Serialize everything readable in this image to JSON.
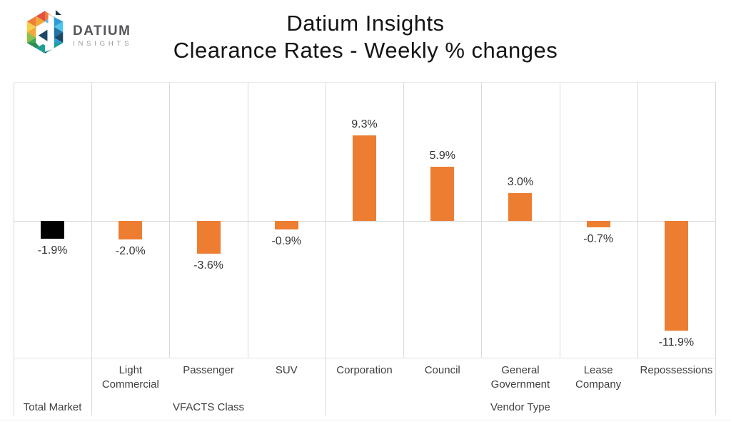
{
  "logo": {
    "brand": "DATIUM",
    "subtitle": "INSIGHTS",
    "icon": "datium-hexagon-mosaic",
    "icon_colors": [
      "#E65143",
      "#EF7D3C",
      "#F2A93B",
      "#F5D14B",
      "#8DC04B",
      "#3FA557",
      "#1FA097",
      "#4FC3E8",
      "#2E9BD6",
      "#2272A4",
      "#1B4965",
      "#163A53"
    ]
  },
  "header": {
    "title_line1": "Datium Insights",
    "title_line2": "Clearance Rates - Weekly % changes"
  },
  "colors": {
    "bar_orange": "#ED7D31",
    "bar_black": "#000000",
    "gridline": "#D9D9D9",
    "axis_line": "#E4E4E4",
    "label_text": "#3F3F3F",
    "title_text": "#141414"
  },
  "chart_data": {
    "type": "bar",
    "title": "Clearance Rates - Weekly % changes",
    "xlabel": "",
    "ylabel": "",
    "ylim": [
      -15,
      15
    ],
    "grid": true,
    "legend": false,
    "categories": [
      "Total Market",
      "Light Commercial",
      "Passenger",
      "SUV",
      "Corporation",
      "Council",
      "General Government",
      "Lease Company",
      "Repossessions"
    ],
    "values": [
      -1.9,
      -2.0,
      -3.6,
      -0.9,
      9.3,
      5.9,
      3.0,
      -0.7,
      -11.9
    ],
    "value_labels": [
      "-1.9%",
      "-2.0%",
      "-3.6%",
      "-0.9%",
      "9.3%",
      "5.9%",
      "3.0%",
      "-0.7%",
      "-11.9%"
    ],
    "bar_colors": [
      "#000000",
      "#ED7D31",
      "#ED7D31",
      "#ED7D31",
      "#ED7D31",
      "#ED7D31",
      "#ED7D31",
      "#ED7D31",
      "#ED7D31"
    ],
    "category_display_lines": [
      [],
      [
        "Light",
        "Commercial"
      ],
      [
        "Passenger"
      ],
      [
        "SUV"
      ],
      [
        "Corporation"
      ],
      [
        "Council"
      ],
      [
        "General",
        "Government"
      ],
      [
        "Lease",
        "Company"
      ],
      [
        "Repossessions"
      ]
    ],
    "groups": [
      {
        "label": "Total Market",
        "start": 0,
        "end": 0
      },
      {
        "label": "VFACTS Class",
        "start": 1,
        "end": 3
      },
      {
        "label": "Vendor Type",
        "start": 4,
        "end": 8
      }
    ]
  }
}
